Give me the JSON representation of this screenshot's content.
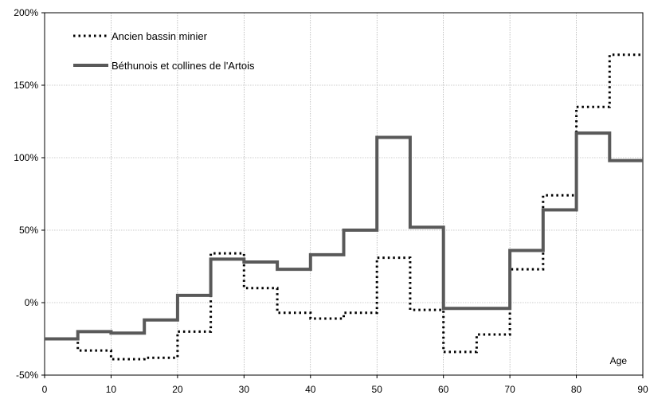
{
  "chart_data": {
    "type": "line",
    "step": true,
    "title": "",
    "xlabel": "Age",
    "ylabel": "",
    "xlim": [
      0,
      90
    ],
    "ylim": [
      -50,
      200
    ],
    "x_ticks": [
      "0",
      "10",
      "20",
      "30",
      "40",
      "50",
      "60",
      "70",
      "80",
      "90"
    ],
    "y_ticks": [
      "-50%",
      "0%",
      "50%",
      "100%",
      "150%",
      "200%"
    ],
    "grid": true,
    "legend_position": "top-left",
    "x": [
      0,
      5,
      10,
      15,
      20,
      25,
      30,
      35,
      40,
      45,
      50,
      55,
      60,
      65,
      70,
      75,
      80,
      85
    ],
    "series": [
      {
        "name": "Ancien bassin minier",
        "style": "dotted",
        "color": "#000000",
        "values": [
          -25,
          -33,
          -39,
          -38,
          -20,
          34,
          10,
          -7,
          -11,
          -7,
          31,
          -5,
          -34,
          -22,
          23,
          74,
          135,
          171
        ]
      },
      {
        "name": "Béthunois et collines de l'Artois",
        "style": "solid",
        "color": "#595959",
        "values": [
          -25,
          -20,
          -21,
          -12,
          5,
          30,
          28,
          23,
          33,
          50,
          114,
          52,
          -4,
          -4,
          36,
          64,
          117,
          98
        ]
      }
    ]
  }
}
